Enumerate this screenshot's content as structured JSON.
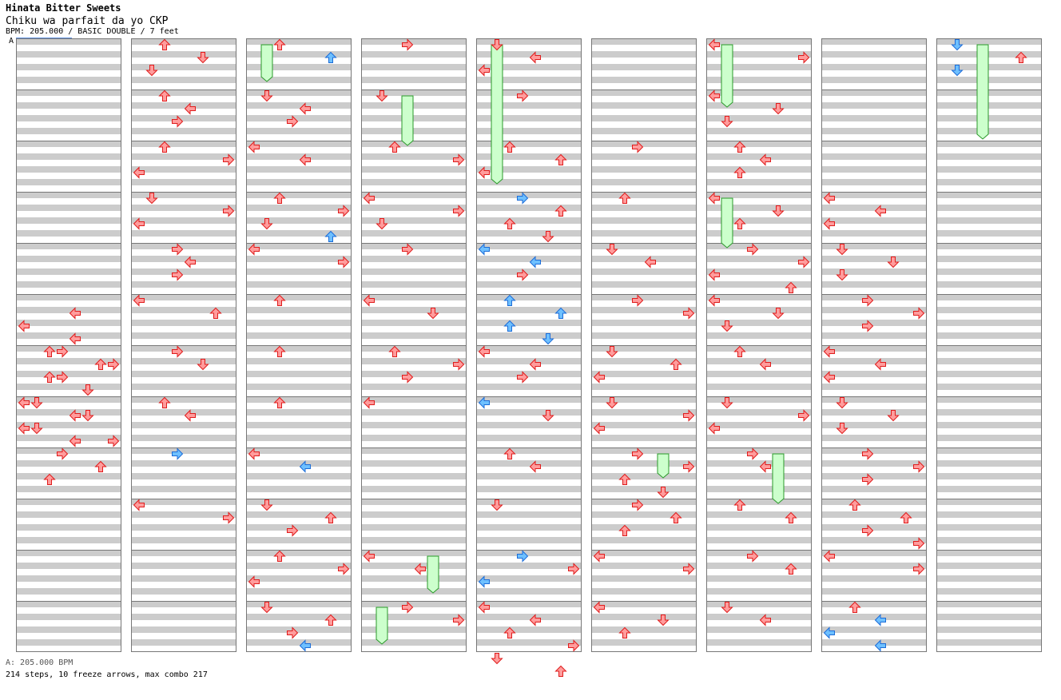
{
  "header": {
    "artist": "Hinata Bitter Sweets",
    "title": "Chiku wa parfait da yo CKP",
    "info": "BPM: 205.000 / BASIC DOUBLE / 7 feet",
    "section_marker": "A"
  },
  "footer": {
    "bpm_line": "A: 205.000 BPM",
    "summary": "214 steps, 10 freeze arrows, max combo 217"
  },
  "chart_data": {
    "type": "step-chart",
    "style": "DOUBLE",
    "difficulty": "BASIC",
    "feet": 7,
    "bpm": 205.0,
    "steps": 214,
    "freeze_arrows": 10,
    "max_combo": 217,
    "columns": 9,
    "measures_per_column": 12,
    "rows_per_measure": 8,
    "lanes": [
      "L1",
      "D1",
      "U1",
      "R1",
      "L2",
      "D2",
      "U2",
      "R2"
    ],
    "colors": {
      "note": "#ff9c9c",
      "note_stroke": "#e01c1c",
      "alt_note": "#6ec0ff",
      "alt_stroke": "#1c6cd8",
      "freeze": "#ccffcc",
      "freeze_stroke": "#2a9a2a",
      "band": "#cccccc",
      "grid": "#777777"
    },
    "notes": [
      [
        0,
        5,
        1,
        "L"
      ],
      [
        0,
        5,
        2,
        "L"
      ],
      [
        0,
        5,
        3,
        "L"
      ],
      [
        0,
        5,
        4,
        "R"
      ],
      [
        0,
        5,
        5,
        "R"
      ],
      [
        0,
        5,
        6,
        "R"
      ],
      [
        0,
        6,
        0,
        "U"
      ],
      [
        0,
        6,
        1,
        "U"
      ],
      [
        0,
        6,
        2,
        "U"
      ],
      [
        0,
        6,
        3,
        "D"
      ],
      [
        0,
        6,
        4,
        "D"
      ],
      [
        0,
        6,
        5,
        "D"
      ],
      [
        0,
        6,
        6,
        "L"
      ],
      [
        0,
        6,
        7,
        "L"
      ],
      [
        0,
        7,
        0,
        "L"
      ],
      [
        0,
        7,
        1,
        "L"
      ],
      [
        0,
        7,
        2,
        "D"
      ],
      [
        0,
        7,
        3,
        "R"
      ],
      [
        0,
        7,
        4,
        "R"
      ],
      [
        0,
        7,
        5,
        "U"
      ],
      [
        0,
        7,
        6,
        "U"
      ],
      [
        1,
        0,
        0,
        "U"
      ],
      [
        1,
        0,
        1,
        "D"
      ],
      [
        1,
        0,
        2,
        "D"
      ],
      [
        1,
        1,
        0,
        "U"
      ],
      [
        1,
        1,
        1,
        "L"
      ],
      [
        1,
        1,
        2,
        "R"
      ],
      [
        1,
        2,
        0,
        "U"
      ],
      [
        1,
        2,
        1,
        "R"
      ],
      [
        1,
        2,
        2,
        "L"
      ],
      [
        1,
        3,
        0,
        "D"
      ],
      [
        1,
        3,
        1,
        "R"
      ],
      [
        1,
        3,
        2,
        "L"
      ],
      [
        1,
        4,
        0,
        "R"
      ],
      [
        1,
        4,
        1,
        "L"
      ],
      [
        1,
        4,
        2,
        "R"
      ],
      [
        1,
        5,
        0,
        "L"
      ],
      [
        1,
        5,
        1,
        "U"
      ],
      [
        1,
        6,
        0,
        "R"
      ],
      [
        1,
        6,
        1,
        "D"
      ],
      [
        1,
        7,
        0,
        "U"
      ],
      [
        1,
        7,
        1,
        "L"
      ],
      [
        1,
        8,
        0,
        "R",
        "b"
      ],
      [
        1,
        9,
        0,
        "L"
      ],
      [
        1,
        9,
        1,
        "R"
      ],
      [
        2,
        0,
        0,
        "U"
      ],
      [
        2,
        0,
        1,
        "U",
        "b"
      ],
      [
        2,
        1,
        0,
        "D"
      ],
      [
        2,
        1,
        1,
        "L"
      ],
      [
        2,
        1,
        2,
        "R"
      ],
      [
        2,
        2,
        0,
        "L"
      ],
      [
        2,
        2,
        1,
        "L"
      ],
      [
        2,
        3,
        0,
        "U"
      ],
      [
        2,
        3,
        1,
        "R"
      ],
      [
        2,
        3,
        2,
        "D"
      ],
      [
        2,
        3,
        3,
        "U",
        "b"
      ],
      [
        2,
        4,
        0,
        "L"
      ],
      [
        2,
        4,
        1,
        "R"
      ],
      [
        2,
        5,
        0,
        "U"
      ],
      [
        2,
        6,
        0,
        "U"
      ],
      [
        2,
        7,
        0,
        "U"
      ],
      [
        2,
        8,
        0,
        "L"
      ],
      [
        2,
        8,
        1,
        "L",
        "b"
      ],
      [
        2,
        9,
        0,
        "D"
      ],
      [
        2,
        9,
        1,
        "U"
      ],
      [
        2,
        9,
        2,
        "R"
      ],
      [
        2,
        10,
        0,
        "U"
      ],
      [
        2,
        10,
        1,
        "R"
      ],
      [
        2,
        10,
        2,
        "L"
      ],
      [
        2,
        11,
        0,
        "D"
      ],
      [
        2,
        11,
        1,
        "U"
      ],
      [
        2,
        11,
        2,
        "R"
      ],
      [
        2,
        11,
        3,
        "L",
        "b"
      ],
      [
        3,
        0,
        0,
        "R"
      ],
      [
        3,
        1,
        0,
        "D"
      ],
      [
        3,
        2,
        0,
        "U"
      ],
      [
        3,
        2,
        1,
        "R"
      ],
      [
        3,
        3,
        0,
        "L"
      ],
      [
        3,
        3,
        1,
        "R"
      ],
      [
        3,
        3,
        2,
        "D"
      ],
      [
        3,
        4,
        0,
        "R"
      ],
      [
        3,
        5,
        0,
        "L"
      ],
      [
        3,
        5,
        1,
        "D"
      ],
      [
        3,
        6,
        0,
        "U"
      ],
      [
        3,
        6,
        1,
        "R"
      ],
      [
        3,
        6,
        2,
        "R"
      ],
      [
        3,
        7,
        0,
        "L"
      ],
      [
        3,
        10,
        0,
        "L"
      ],
      [
        3,
        10,
        1,
        "L"
      ],
      [
        3,
        11,
        0,
        "R"
      ],
      [
        3,
        11,
        1,
        "R"
      ],
      [
        4,
        0,
        0,
        "D"
      ],
      [
        4,
        0,
        1,
        "L"
      ],
      [
        4,
        0,
        2,
        "L"
      ],
      [
        4,
        1,
        0,
        "R"
      ],
      [
        4,
        2,
        0,
        "U"
      ],
      [
        4,
        2,
        1,
        "U"
      ],
      [
        4,
        2,
        2,
        "L"
      ],
      [
        4,
        3,
        0,
        "R",
        "b"
      ],
      [
        4,
        3,
        1,
        "U"
      ],
      [
        4,
        3,
        2,
        "U"
      ],
      [
        4,
        3,
        3,
        "D"
      ],
      [
        4,
        4,
        0,
        "L",
        "b"
      ],
      [
        4,
        4,
        1,
        "L",
        "b"
      ],
      [
        4,
        4,
        2,
        "R"
      ],
      [
        4,
        5,
        0,
        "U",
        "b"
      ],
      [
        4,
        5,
        1,
        "U",
        "b"
      ],
      [
        4,
        5,
        2,
        "U",
        "b"
      ],
      [
        4,
        5,
        3,
        "D",
        "b"
      ],
      [
        4,
        6,
        0,
        "L"
      ],
      [
        4,
        6,
        1,
        "L"
      ],
      [
        4,
        6,
        2,
        "R"
      ],
      [
        4,
        7,
        0,
        "L",
        "b"
      ],
      [
        4,
        7,
        1,
        "D"
      ],
      [
        4,
        8,
        0,
        "U"
      ],
      [
        4,
        8,
        1,
        "L"
      ],
      [
        4,
        9,
        0,
        "D"
      ],
      [
        4,
        10,
        0,
        "R",
        "b"
      ],
      [
        4,
        10,
        1,
        "R"
      ],
      [
        4,
        10,
        2,
        "L",
        "b"
      ],
      [
        4,
        11,
        0,
        "L"
      ],
      [
        4,
        11,
        1,
        "L"
      ],
      [
        4,
        11,
        2,
        "U"
      ],
      [
        4,
        11,
        3,
        "R"
      ],
      [
        4,
        11,
        4,
        "D"
      ],
      [
        4,
        11,
        5,
        "U"
      ],
      [
        5,
        2,
        0,
        "R"
      ],
      [
        5,
        3,
        0,
        "U"
      ],
      [
        5,
        4,
        0,
        "D"
      ],
      [
        5,
        4,
        1,
        "L"
      ],
      [
        5,
        5,
        0,
        "R"
      ],
      [
        5,
        5,
        1,
        "R"
      ],
      [
        5,
        6,
        0,
        "D"
      ],
      [
        5,
        6,
        1,
        "U"
      ],
      [
        5,
        6,
        2,
        "L"
      ],
      [
        5,
        7,
        0,
        "D"
      ],
      [
        5,
        7,
        1,
        "R"
      ],
      [
        5,
        7,
        2,
        "L"
      ],
      [
        5,
        8,
        0,
        "R"
      ],
      [
        5,
        8,
        1,
        "R"
      ],
      [
        5,
        8,
        2,
        "U"
      ],
      [
        5,
        8,
        3,
        "D"
      ],
      [
        5,
        9,
        0,
        "R"
      ],
      [
        5,
        9,
        1,
        "U"
      ],
      [
        5,
        9,
        2,
        "U"
      ],
      [
        5,
        10,
        0,
        "L"
      ],
      [
        5,
        10,
        1,
        "R"
      ],
      [
        5,
        11,
        0,
        "L"
      ],
      [
        5,
        11,
        1,
        "D"
      ],
      [
        5,
        11,
        2,
        "U"
      ],
      [
        6,
        0,
        0,
        "L"
      ],
      [
        6,
        0,
        1,
        "R"
      ],
      [
        6,
        1,
        0,
        "L"
      ],
      [
        6,
        1,
        1,
        "D"
      ],
      [
        6,
        1,
        2,
        "D"
      ],
      [
        6,
        2,
        0,
        "U"
      ],
      [
        6,
        2,
        1,
        "L"
      ],
      [
        6,
        2,
        2,
        "U"
      ],
      [
        6,
        3,
        0,
        "L"
      ],
      [
        6,
        3,
        1,
        "D"
      ],
      [
        6,
        3,
        2,
        "U"
      ],
      [
        6,
        4,
        0,
        "R"
      ],
      [
        6,
        4,
        1,
        "R"
      ],
      [
        6,
        4,
        2,
        "L"
      ],
      [
        6,
        4,
        3,
        "U"
      ],
      [
        6,
        5,
        0,
        "L"
      ],
      [
        6,
        5,
        1,
        "D"
      ],
      [
        6,
        5,
        2,
        "D"
      ],
      [
        6,
        6,
        0,
        "U"
      ],
      [
        6,
        6,
        1,
        "L"
      ],
      [
        6,
        7,
        0,
        "D"
      ],
      [
        6,
        7,
        1,
        "R"
      ],
      [
        6,
        7,
        2,
        "L"
      ],
      [
        6,
        8,
        0,
        "R"
      ],
      [
        6,
        8,
        1,
        "L"
      ],
      [
        6,
        9,
        0,
        "U"
      ],
      [
        6,
        9,
        1,
        "U"
      ],
      [
        6,
        10,
        0,
        "R"
      ],
      [
        6,
        10,
        1,
        "U"
      ],
      [
        6,
        11,
        0,
        "D"
      ],
      [
        6,
        11,
        1,
        "L"
      ],
      [
        7,
        3,
        0,
        "L"
      ],
      [
        7,
        3,
        1,
        "L"
      ],
      [
        7,
        3,
        2,
        "L"
      ],
      [
        7,
        4,
        0,
        "D"
      ],
      [
        7,
        4,
        1,
        "D"
      ],
      [
        7,
        4,
        2,
        "D"
      ],
      [
        7,
        5,
        0,
        "R"
      ],
      [
        7,
        5,
        1,
        "R"
      ],
      [
        7,
        5,
        2,
        "R"
      ],
      [
        7,
        6,
        0,
        "L"
      ],
      [
        7,
        6,
        1,
        "L"
      ],
      [
        7,
        6,
        2,
        "L"
      ],
      [
        7,
        7,
        0,
        "D"
      ],
      [
        7,
        7,
        1,
        "D"
      ],
      [
        7,
        7,
        2,
        "D"
      ],
      [
        7,
        8,
        0,
        "R"
      ],
      [
        7,
        8,
        1,
        "R"
      ],
      [
        7,
        8,
        2,
        "R"
      ],
      [
        7,
        9,
        0,
        "U"
      ],
      [
        7,
        9,
        1,
        "U"
      ],
      [
        7,
        9,
        2,
        "R"
      ],
      [
        7,
        9,
        3,
        "R"
      ],
      [
        7,
        10,
        0,
        "L"
      ],
      [
        7,
        10,
        1,
        "R"
      ],
      [
        7,
        11,
        0,
        "U"
      ],
      [
        7,
        11,
        1,
        "L",
        "b"
      ],
      [
        7,
        11,
        2,
        "L",
        "b"
      ],
      [
        7,
        11,
        3,
        "L",
        "b"
      ],
      [
        8,
        0,
        0,
        "D",
        "b"
      ],
      [
        8,
        0,
        1,
        "U"
      ],
      [
        8,
        0,
        2,
        "D",
        "b"
      ]
    ],
    "freezes": [
      [
        2,
        0,
        0,
        "D",
        0,
        2.5
      ],
      [
        4,
        0,
        0,
        "D",
        0,
        10.5
      ],
      [
        6,
        0,
        0,
        "D",
        0,
        4.5
      ],
      [
        8,
        0,
        0,
        "D",
        1,
        7
      ],
      [
        3,
        1,
        0,
        "D",
        1,
        3.5
      ],
      [
        6,
        3,
        0,
        "U",
        0,
        3.5
      ],
      [
        6,
        8,
        0,
        "R",
        2,
        3.5
      ],
      [
        5,
        8,
        0,
        "L",
        2,
        1.5
      ],
      [
        3,
        10,
        0,
        "U",
        2,
        2.5
      ],
      [
        3,
        11,
        0,
        "U",
        0,
        2.5
      ]
    ]
  }
}
